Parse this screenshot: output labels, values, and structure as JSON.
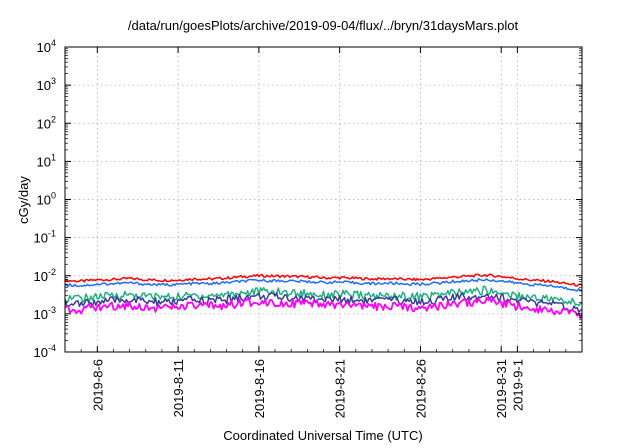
{
  "chart_data": {
    "type": "line",
    "title": "/data/run/goesPlots/archive/2019-09-04/flux/../bryn/31daysMars.plot",
    "xlabel": "Coordinated Universal Time (UTC)",
    "ylabel": "cGy/day",
    "yscale": "log",
    "ylim": [
      0.0001,
      10000
    ],
    "xlim": [
      "2019-08-04",
      "2019-09-05"
    ],
    "grid": true,
    "y_ticks": [
      {
        "mant": "10",
        "exp": "-4"
      },
      {
        "mant": "10",
        "exp": "-3"
      },
      {
        "mant": "10",
        "exp": "-2"
      },
      {
        "mant": "10",
        "exp": "-1"
      },
      {
        "mant": "10",
        "exp": "0"
      },
      {
        "mant": "10",
        "exp": "1"
      },
      {
        "mant": "10",
        "exp": "2"
      },
      {
        "mant": "10",
        "exp": "3"
      },
      {
        "mant": "10",
        "exp": "4"
      }
    ],
    "x_ticks": [
      {
        "date": "2019-08-06",
        "label": "2019-8-6"
      },
      {
        "date": "2019-08-11",
        "label": "2019-8-11"
      },
      {
        "date": "2019-08-16",
        "label": "2019-8-16"
      },
      {
        "date": "2019-08-21",
        "label": "2019-8-21"
      },
      {
        "date": "2019-08-26",
        "label": "2019-8-26"
      },
      {
        "date": "2019-08-31",
        "label": "2019-8-31"
      },
      {
        "date": "2019-09-01",
        "label": "2019-9-1"
      }
    ],
    "x": [
      "2019-08-04",
      "2019-08-05",
      "2019-08-06",
      "2019-08-07",
      "2019-08-08",
      "2019-08-09",
      "2019-08-10",
      "2019-08-11",
      "2019-08-12",
      "2019-08-13",
      "2019-08-14",
      "2019-08-15",
      "2019-08-16",
      "2019-08-17",
      "2019-08-18",
      "2019-08-19",
      "2019-08-20",
      "2019-08-21",
      "2019-08-22",
      "2019-08-23",
      "2019-08-24",
      "2019-08-25",
      "2019-08-26",
      "2019-08-27",
      "2019-08-28",
      "2019-08-29",
      "2019-08-30",
      "2019-08-31",
      "2019-09-01",
      "2019-09-02",
      "2019-09-03",
      "2019-09-04",
      "2019-09-05"
    ],
    "series": [
      {
        "color": "#ff0000",
        "values": [
          0.0075,
          0.0072,
          0.0078,
          0.008,
          0.0085,
          0.0079,
          0.0076,
          0.0077,
          0.0083,
          0.0082,
          0.0087,
          0.0095,
          0.01,
          0.0098,
          0.0096,
          0.0093,
          0.0088,
          0.0089,
          0.0086,
          0.0082,
          0.0084,
          0.0081,
          0.0079,
          0.0085,
          0.0092,
          0.0098,
          0.0104,
          0.0096,
          0.0084,
          0.0076,
          0.0072,
          0.0062,
          0.0055
        ]
      },
      {
        "color": "#1e6fff",
        "values": [
          0.0058,
          0.0055,
          0.006,
          0.0062,
          0.0065,
          0.006,
          0.0058,
          0.0059,
          0.0063,
          0.0062,
          0.0066,
          0.0072,
          0.0076,
          0.0074,
          0.0073,
          0.007,
          0.0067,
          0.0068,
          0.0065,
          0.0062,
          0.0064,
          0.0061,
          0.006,
          0.0064,
          0.007,
          0.0074,
          0.0079,
          0.0073,
          0.0064,
          0.0058,
          0.0055,
          0.0047,
          0.0042
        ]
      },
      {
        "color": "#20b080",
        "values": [
          0.0027,
          0.0025,
          0.0028,
          0.003,
          0.0032,
          0.0029,
          0.0028,
          0.0028,
          0.0031,
          0.003,
          0.0033,
          0.0036,
          0.0039,
          0.0037,
          0.0036,
          0.0034,
          0.0032,
          0.0033,
          0.0031,
          0.0029,
          0.003,
          0.0029,
          0.0028,
          0.0031,
          0.0035,
          0.0038,
          0.0041,
          0.0036,
          0.003,
          0.0027,
          0.0025,
          0.0021,
          0.0019
        ]
      },
      {
        "color": "#3a3a9a",
        "values": [
          0.002,
          0.0018,
          0.0021,
          0.0022,
          0.0024,
          0.0021,
          0.002,
          0.0021,
          0.0023,
          0.0022,
          0.0024,
          0.0027,
          0.0029,
          0.0028,
          0.0027,
          0.0025,
          0.0024,
          0.0024,
          0.0023,
          0.0022,
          0.0023,
          0.0022,
          0.0021,
          0.0023,
          0.0026,
          0.0028,
          0.0031,
          0.0027,
          0.0022,
          0.002,
          0.0018,
          0.0015,
          0.0013
        ]
      },
      {
        "color": "#ff00ff",
        "values": [
          0.0014,
          0.0013,
          0.0015,
          0.0016,
          0.0017,
          0.0015,
          0.0014,
          0.0015,
          0.0016,
          0.0016,
          0.0017,
          0.0019,
          0.0021,
          0.002,
          0.0019,
          0.0018,
          0.0017,
          0.0017,
          0.0016,
          0.0015,
          0.0016,
          0.0015,
          0.0015,
          0.0016,
          0.0018,
          0.002,
          0.0022,
          0.0019,
          0.0016,
          0.0014,
          0.0013,
          0.0011,
          0.00095
        ]
      }
    ]
  }
}
